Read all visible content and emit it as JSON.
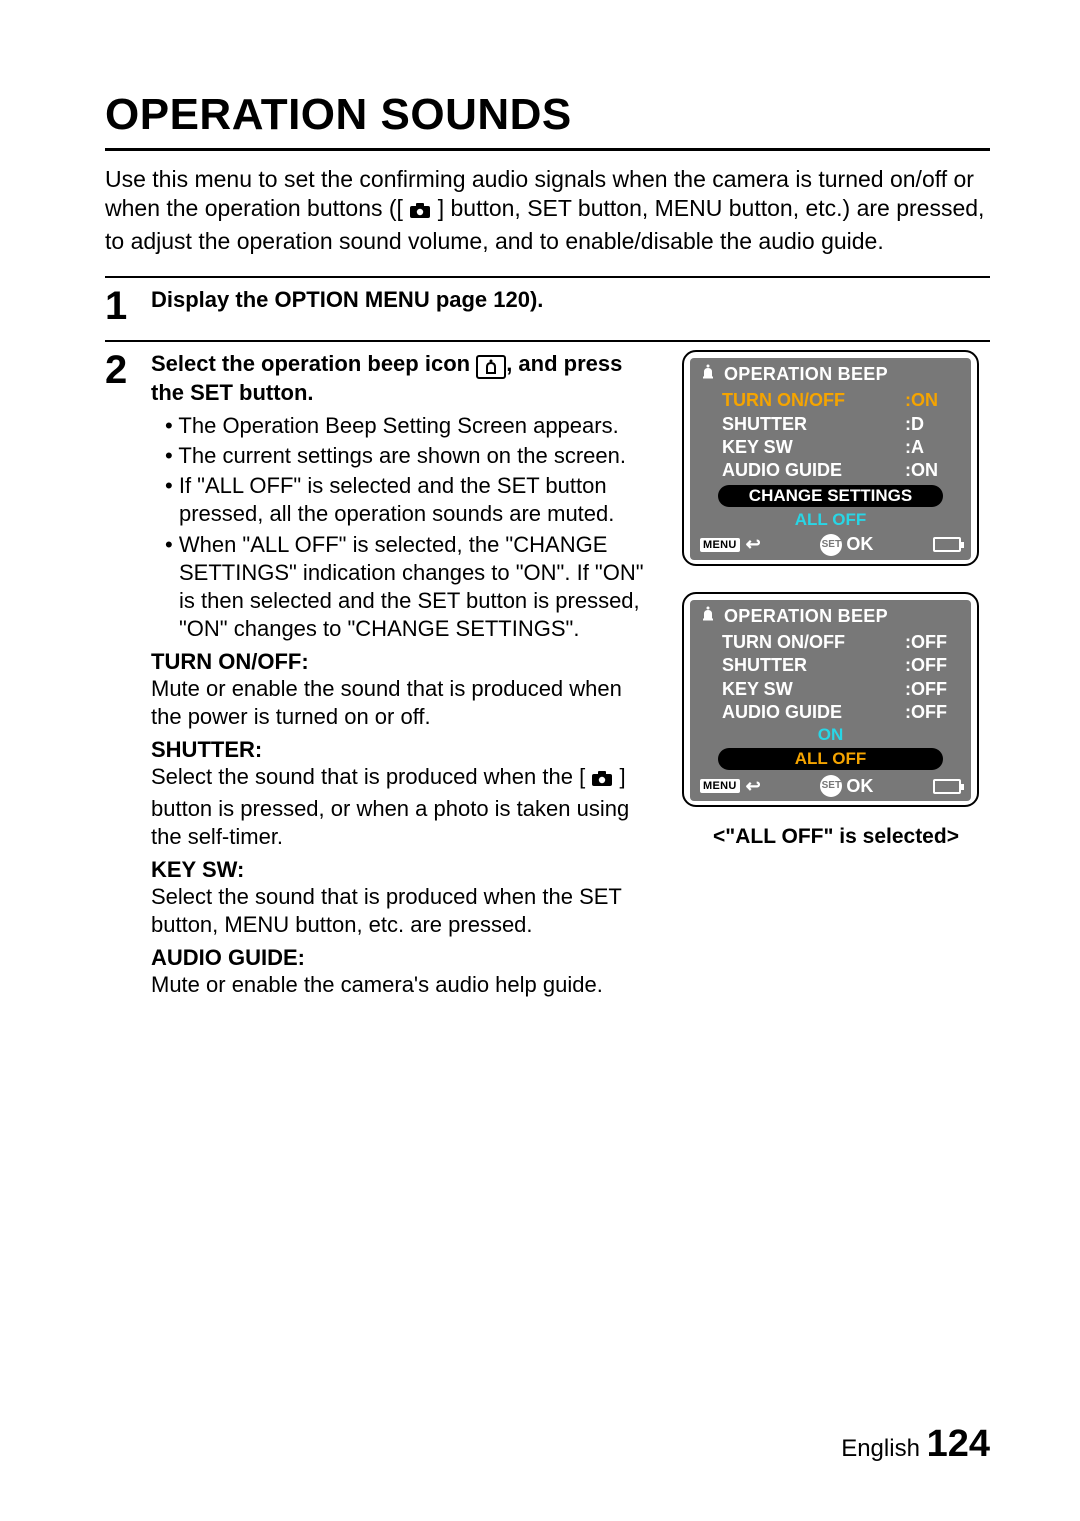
{
  "title": "OPERATION SOUNDS",
  "intro_parts": {
    "a": "Use this menu to set the confirming audio signals when the camera is turned on/off or when the operation buttons ([",
    "b": "] button, SET button, MENU button, etc.) are pressed, to adjust the operation sound volume, and to enable/disable the audio guide."
  },
  "step1": {
    "num": "1",
    "head": "Display the OPTION MENU page 120)."
  },
  "step2": {
    "num": "2",
    "head_a": "Select the operation beep icon ",
    "head_b": ", and press the SET button.",
    "bullets": [
      "The Operation Beep Setting Screen appears.",
      "The current settings are shown on the screen.",
      "If \"ALL OFF\" is selected and the SET button pressed, all the operation sounds are muted.",
      "When \"ALL OFF\" is selected, the \"CHANGE SETTINGS\" indication changes to \"ON\". If \"ON\" is then selected and the SET button is pressed, \"ON\" changes to \"CHANGE SETTINGS\"."
    ],
    "subs": [
      {
        "label": "TURN ON/OFF:",
        "desc": "Mute or enable the sound that is produced when the power is turned on or off."
      },
      {
        "label": "SHUTTER:",
        "desc_a": "Select the sound that is produced when the [",
        "desc_b": "] button is pressed, or when a photo is taken using the self-timer."
      },
      {
        "label": "KEY SW:",
        "desc": "Select the sound that is produced when the SET button, MENU button, etc. are pressed."
      },
      {
        "label": "AUDIO GUIDE:",
        "desc": "Mute or enable the camera's audio help guide."
      }
    ]
  },
  "lcd1": {
    "title": "OPERATION BEEP",
    "rows": [
      {
        "k": "TURN ON/OFF",
        "v": ":ON",
        "yellow": true
      },
      {
        "k": "SHUTTER",
        "v": ":D",
        "yellow": false
      },
      {
        "k": "KEY SW",
        "v": ":A",
        "yellow": false
      },
      {
        "k": "AUDIO GUIDE",
        "v": ":ON",
        "yellow": false
      }
    ],
    "pill": "CHANGE SETTINGS",
    "center": {
      "text": "ALL OFF",
      "cls": "cyan"
    },
    "menu": "MENU",
    "set": "SET",
    "ok": "OK"
  },
  "lcd2": {
    "title": "OPERATION BEEP",
    "rows": [
      {
        "k": "TURN ON/OFF",
        "v": ":OFF",
        "yellow": false
      },
      {
        "k": "SHUTTER",
        "v": ":OFF",
        "yellow": false
      },
      {
        "k": "KEY SW",
        "v": ":OFF",
        "yellow": false
      },
      {
        "k": "AUDIO GUIDE",
        "v": ":OFF",
        "yellow": false
      }
    ],
    "center1": {
      "text": "ON",
      "cls": "cyan"
    },
    "pill": "ALL OFF",
    "menu": "MENU",
    "set": "SET",
    "ok": "OK"
  },
  "caption": "<\"ALL OFF\" is selected>",
  "footer": {
    "lang": "English",
    "page": "124"
  },
  "colors": {
    "lcd_bg": "#787878",
    "lcd_yellow": "#f5a400",
    "lcd_cyan": "#28d6e6"
  }
}
